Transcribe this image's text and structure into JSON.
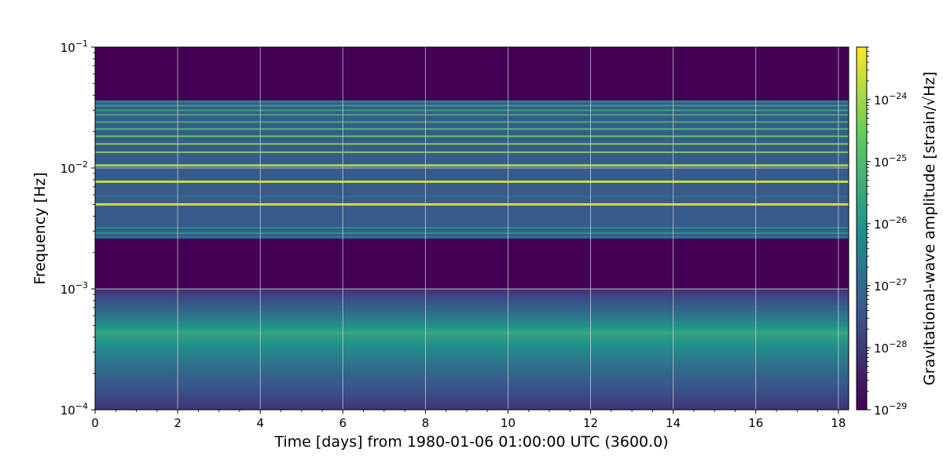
{
  "chart_data": {
    "type": "heatmap",
    "xlabel": "Time [days] from 1980-01-06 01:00:00 UTC (3600.0)",
    "ylabel": "Frequency [Hz]",
    "colorbar_label": "Gravitational-wave amplitude [strain/√Hz]",
    "colormap": "viridis",
    "colors": [
      "#440154",
      "#3b528b",
      "#21918c",
      "#5ec962",
      "#fde725"
    ],
    "xlim": [
      0,
      18.25
    ],
    "ylim": [
      0.0001,
      0.1
    ],
    "yscale": "log",
    "clim": [
      1e-29,
      7e-24
    ],
    "cscale": "log",
    "grid": true,
    "x_ticks": [
      0,
      2,
      4,
      6,
      8,
      10,
      12,
      14,
      16,
      18
    ],
    "x_tick_labels": [
      "0",
      "2",
      "4",
      "6",
      "8",
      "10",
      "12",
      "14",
      "16",
      "18"
    ],
    "y_ticks": [
      {
        "value": 0.0001,
        "base": "10",
        "exp": "−4"
      },
      {
        "value": 0.001,
        "base": "10",
        "exp": "−3"
      },
      {
        "value": 0.01,
        "base": "10",
        "exp": "−2"
      },
      {
        "value": 0.1,
        "base": "10",
        "exp": "−1"
      }
    ],
    "colorbar_ticks": [
      {
        "value": 1e-29,
        "base": "10",
        "exp": "−29"
      },
      {
        "value": 1e-28,
        "base": "10",
        "exp": "−28"
      },
      {
        "value": 1e-27,
        "base": "10",
        "exp": "−27"
      },
      {
        "value": 1e-26,
        "base": "10",
        "exp": "−26"
      },
      {
        "value": 1e-25,
        "base": "10",
        "exp": "−25"
      },
      {
        "value": 1e-24,
        "base": "10",
        "exp": "−24"
      }
    ],
    "floor_level": 1e-29,
    "low_band": {
      "f_min": 0.0001,
      "f_max": 0.001,
      "peak_frequency": 0.00044,
      "peak_level": 3e-26,
      "edge_level": 8e-29
    },
    "mid_band": {
      "f_min": 0.0026,
      "f_max": 0.036,
      "background_level": 5e-28
    },
    "lines": [
      {
        "frequency": 0.0027,
        "level": 2e-27
      },
      {
        "frequency": 0.0029,
        "level": 1e-26
      },
      {
        "frequency": 0.0032,
        "level": 8e-27
      },
      {
        "frequency": 0.005,
        "level": 3e-24
      },
      {
        "frequency": 0.0058,
        "level": 1e-27
      },
      {
        "frequency": 0.0077,
        "level": 2e-24
      },
      {
        "frequency": 0.0105,
        "level": 1e-24
      },
      {
        "frequency": 0.0135,
        "level": 4e-25
      },
      {
        "frequency": 0.0158,
        "level": 5e-25
      },
      {
        "frequency": 0.0183,
        "level": 2e-25
      },
      {
        "frequency": 0.021,
        "level": 1e-25
      },
      {
        "frequency": 0.024,
        "level": 5e-26
      },
      {
        "frequency": 0.0275,
        "level": 4e-26
      },
      {
        "frequency": 0.03,
        "level": 3e-26
      },
      {
        "frequency": 0.0328,
        "level": 2e-26
      },
      {
        "frequency": 0.0355,
        "level": 1e-26
      }
    ]
  }
}
